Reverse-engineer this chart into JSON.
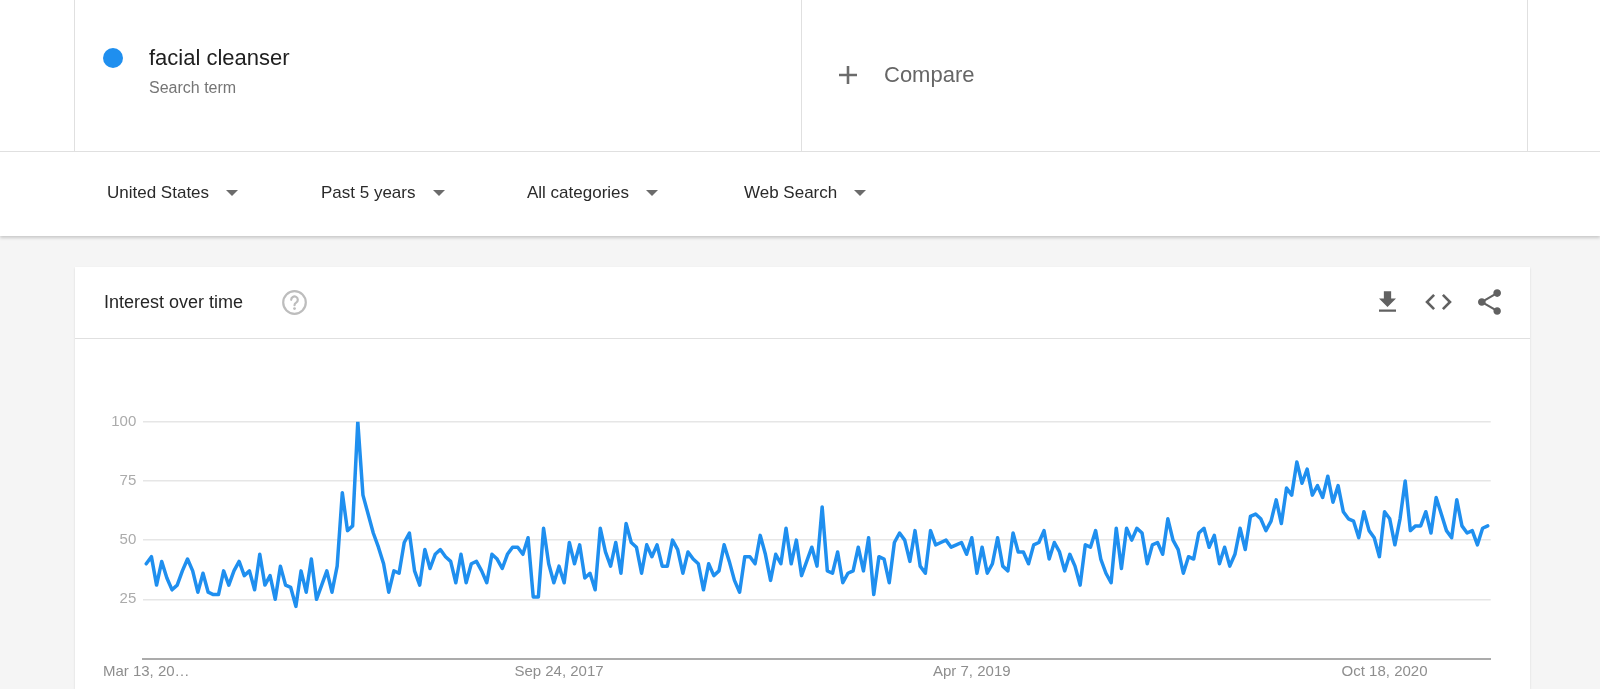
{
  "chart_data": {
    "type": "line",
    "title": "Interest over time",
    "x": [
      "2016-03-13",
      "2016-03-20",
      "2016-03-27",
      "2016-04-03",
      "2016-04-10",
      "2016-04-17",
      "2016-04-24",
      "2016-05-01",
      "2016-05-08",
      "2016-05-15",
      "2016-05-22",
      "2016-05-29",
      "2016-06-05",
      "2016-06-12",
      "2016-06-19",
      "2016-06-26",
      "2016-07-03",
      "2016-07-10",
      "2016-07-17",
      "2016-07-24",
      "2016-07-31",
      "2016-08-07",
      "2016-08-14",
      "2016-08-21",
      "2016-08-28",
      "2016-09-04",
      "2016-09-11",
      "2016-09-18",
      "2016-09-25",
      "2016-10-02",
      "2016-10-09",
      "2016-10-16",
      "2016-10-23",
      "2016-10-30",
      "2016-11-06",
      "2016-11-13",
      "2016-11-20",
      "2016-11-27",
      "2016-12-04",
      "2016-12-11",
      "2016-12-18",
      "2016-12-25",
      "2017-01-01",
      "2017-01-08",
      "2017-01-15",
      "2017-01-22",
      "2017-01-29",
      "2017-02-05",
      "2017-02-12",
      "2017-02-19",
      "2017-02-26",
      "2017-03-05",
      "2017-03-12",
      "2017-03-19",
      "2017-03-26",
      "2017-04-02",
      "2017-04-09",
      "2017-04-16",
      "2017-04-23",
      "2017-04-30",
      "2017-05-07",
      "2017-05-14",
      "2017-05-21",
      "2017-05-28",
      "2017-06-04",
      "2017-06-11",
      "2017-06-18",
      "2017-06-25",
      "2017-07-02",
      "2017-07-09",
      "2017-07-16",
      "2017-07-23",
      "2017-07-30",
      "2017-08-06",
      "2017-08-13",
      "2017-08-20",
      "2017-08-27",
      "2017-09-03",
      "2017-09-10",
      "2017-09-17",
      "2017-09-24",
      "2017-10-01",
      "2017-10-08",
      "2017-10-15",
      "2017-10-22",
      "2017-10-29",
      "2017-11-05",
      "2017-11-12",
      "2017-11-19",
      "2017-11-26",
      "2017-12-03",
      "2017-12-10",
      "2017-12-17",
      "2017-12-24",
      "2017-12-31",
      "2018-01-07",
      "2018-01-14",
      "2018-01-21",
      "2018-01-28",
      "2018-02-04",
      "2018-02-11",
      "2018-02-18",
      "2018-02-25",
      "2018-03-04",
      "2018-03-11",
      "2018-03-18",
      "2018-03-25",
      "2018-04-01",
      "2018-04-08",
      "2018-04-15",
      "2018-04-22",
      "2018-04-29",
      "2018-05-06",
      "2018-05-13",
      "2018-05-20",
      "2018-05-27",
      "2018-06-03",
      "2018-06-10",
      "2018-06-17",
      "2018-06-24",
      "2018-07-01",
      "2018-07-08",
      "2018-07-15",
      "2018-07-22",
      "2018-07-29",
      "2018-08-05",
      "2018-08-12",
      "2018-08-19",
      "2018-08-26",
      "2018-09-02",
      "2018-09-09",
      "2018-09-16",
      "2018-09-23",
      "2018-09-30",
      "2018-10-07",
      "2018-10-14",
      "2018-10-21",
      "2018-10-28",
      "2018-11-04",
      "2018-11-11",
      "2018-11-18",
      "2018-11-25",
      "2018-12-02",
      "2018-12-09",
      "2018-12-16",
      "2018-12-23",
      "2018-12-30",
      "2019-01-06",
      "2019-01-13",
      "2019-01-20",
      "2019-01-27",
      "2019-02-03",
      "2019-02-10",
      "2019-02-17",
      "2019-02-24",
      "2019-03-03",
      "2019-03-10",
      "2019-03-17",
      "2019-03-24",
      "2019-03-31",
      "2019-04-07",
      "2019-04-14",
      "2019-04-21",
      "2019-04-28",
      "2019-05-05",
      "2019-05-12",
      "2019-05-19",
      "2019-05-26",
      "2019-06-02",
      "2019-06-09",
      "2019-06-16",
      "2019-06-23",
      "2019-06-30",
      "2019-07-07",
      "2019-07-14",
      "2019-07-21",
      "2019-07-28",
      "2019-08-04",
      "2019-08-11",
      "2019-08-18",
      "2019-08-25",
      "2019-09-01",
      "2019-09-08",
      "2019-09-15",
      "2019-09-22",
      "2019-09-29",
      "2019-10-06",
      "2019-10-13",
      "2019-10-20",
      "2019-10-27",
      "2019-11-03",
      "2019-11-10",
      "2019-11-17",
      "2019-11-24",
      "2019-12-01",
      "2019-12-08",
      "2019-12-15",
      "2019-12-22",
      "2019-12-29",
      "2020-01-05",
      "2020-01-12",
      "2020-01-19",
      "2020-01-26",
      "2020-02-02",
      "2020-02-09",
      "2020-02-16",
      "2020-02-23",
      "2020-03-01",
      "2020-03-08",
      "2020-03-15",
      "2020-03-22",
      "2020-03-29",
      "2020-04-05",
      "2020-04-12",
      "2020-04-19",
      "2020-04-26",
      "2020-05-03",
      "2020-05-10",
      "2020-05-17",
      "2020-05-24",
      "2020-05-31",
      "2020-06-07",
      "2020-06-14",
      "2020-06-21",
      "2020-06-28",
      "2020-07-05",
      "2020-07-12",
      "2020-07-19",
      "2020-07-26",
      "2020-08-02",
      "2020-08-09",
      "2020-08-16",
      "2020-08-23",
      "2020-08-30",
      "2020-09-06",
      "2020-09-13",
      "2020-09-20",
      "2020-09-27",
      "2020-10-04",
      "2020-10-11",
      "2020-10-18",
      "2020-10-25",
      "2020-11-01",
      "2020-11-08",
      "2020-11-15",
      "2020-11-22",
      "2020-11-29",
      "2020-12-06",
      "2020-12-13",
      "2020-12-20",
      "2020-12-27",
      "2021-01-03",
      "2021-01-10",
      "2021-01-17",
      "2021-01-24",
      "2021-01-31",
      "2021-02-07",
      "2021-02-14",
      "2021-02-21",
      "2021-02-28",
      "2021-03-07"
    ],
    "series": [
      {
        "name": "facial cleanser",
        "color": "#1f8fef",
        "values": [
          40,
          43,
          31,
          41,
          34,
          29,
          31,
          37,
          42,
          37,
          28,
          36,
          28,
          27,
          27,
          37,
          31,
          37,
          41,
          35,
          37,
          29,
          44,
          31,
          35,
          25,
          39,
          31,
          30,
          22,
          37,
          28,
          42,
          25,
          31,
          37,
          28,
          39,
          70,
          54,
          56,
          100,
          69,
          61,
          53,
          47,
          40,
          28,
          37,
          36,
          49,
          53,
          37,
          31,
          46,
          38,
          44,
          46,
          43,
          41,
          32,
          44,
          32,
          40,
          41,
          37,
          32,
          44,
          42,
          38,
          44,
          47,
          47,
          44,
          51,
          26,
          26,
          55,
          40,
          32,
          39,
          32,
          49,
          40,
          48,
          34,
          36,
          29,
          55,
          45,
          39,
          49,
          36,
          57,
          49,
          47,
          36,
          48,
          43,
          48,
          39,
          39,
          50,
          46,
          36,
          45,
          42,
          40,
          29,
          40,
          35,
          37,
          48,
          41,
          33,
          28,
          43,
          43,
          40,
          52,
          44,
          33,
          44,
          40,
          55,
          40,
          50,
          35,
          41,
          47,
          39,
          64,
          37,
          36,
          45,
          32,
          36,
          37,
          47,
          37,
          51,
          27,
          43,
          42,
          32,
          49,
          53,
          50,
          41,
          54,
          39,
          36,
          54,
          48,
          49,
          50,
          47,
          48,
          49,
          44,
          51,
          36,
          47,
          36,
          40,
          51,
          39,
          37,
          53,
          45,
          45,
          40,
          48,
          49,
          54,
          42,
          49,
          45,
          37,
          44,
          39,
          31,
          48,
          47,
          54,
          42,
          36,
          32,
          55,
          38,
          55,
          50,
          55,
          53,
          40,
          48,
          49,
          44,
          59,
          50,
          46,
          36,
          43,
          42,
          53,
          55,
          47,
          52,
          40,
          47,
          39,
          44,
          55,
          46,
          60,
          61,
          59,
          54,
          58,
          67,
          57,
          72,
          69,
          83,
          74,
          80,
          69,
          73,
          68,
          77,
          66,
          73,
          62,
          59,
          58,
          51,
          62,
          54,
          51,
          43,
          62,
          59,
          48,
          59,
          75,
          54,
          56,
          56,
          62,
          53,
          68,
          61,
          54,
          51,
          67,
          56,
          53,
          54,
          48,
          55,
          56
        ]
      }
    ],
    "xlim": [
      "2016-03-09",
      "2021-03-11"
    ],
    "xticks": [
      {
        "value": "2016-03-13",
        "label": "Mar 13, 20…"
      },
      {
        "value": "2017-09-24",
        "label": "Sep 24, 2017"
      },
      {
        "value": "2019-04-07",
        "label": "Apr 7, 2019"
      },
      {
        "value": "2020-10-18",
        "label": "Oct 18, 2020"
      }
    ],
    "ylim": [
      0,
      100
    ],
    "yticks": [
      25,
      50,
      75,
      100
    ],
    "grid": "y",
    "legend": "top left",
    "marker": "none",
    "line_style": "solid",
    "annotations": [
      "Search term",
      "Compare",
      "United States",
      "Past 5 years",
      "All categories",
      "Web Search"
    ]
  }
}
